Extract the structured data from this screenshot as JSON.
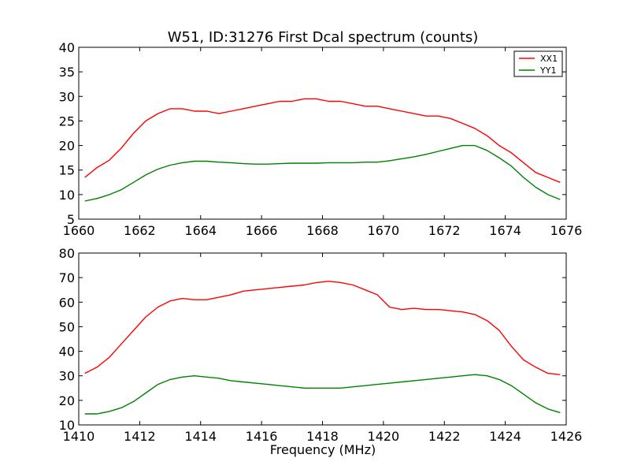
{
  "figure": {
    "title": "W51, ID:31276 First Dcal spectrum (counts)",
    "xlabel": "Frequency (MHz)"
  },
  "chart_data": [
    {
      "type": "line",
      "title": "W51, ID:31276 First Dcal spectrum (counts)",
      "xlabel": "",
      "ylabel": "",
      "xlim": [
        1660,
        1676
      ],
      "ylim": [
        5,
        40
      ],
      "xticks": [
        1660,
        1662,
        1664,
        1666,
        1668,
        1670,
        1672,
        1674,
        1676
      ],
      "yticks": [
        5,
        10,
        15,
        20,
        25,
        30,
        35,
        40
      ],
      "grid": false,
      "legend": {
        "placement": "top-right",
        "entries": [
          "XX1",
          "YY1"
        ]
      },
      "x": [
        1660.2,
        1660.6,
        1661.0,
        1661.4,
        1661.8,
        1662.2,
        1662.6,
        1663.0,
        1663.4,
        1663.8,
        1664.2,
        1664.6,
        1665.0,
        1665.4,
        1665.8,
        1666.2,
        1666.6,
        1667.0,
        1667.4,
        1667.8,
        1668.2,
        1668.6,
        1669.0,
        1669.4,
        1669.8,
        1670.2,
        1670.6,
        1671.0,
        1671.4,
        1671.8,
        1672.2,
        1672.6,
        1673.0,
        1673.4,
        1673.8,
        1674.2,
        1674.6,
        1675.0,
        1675.4,
        1675.8
      ],
      "series": [
        {
          "name": "XX1",
          "color": "#ff0000",
          "values": [
            13.5,
            15.5,
            17.0,
            19.5,
            22.5,
            25.0,
            26.5,
            27.5,
            27.5,
            27.0,
            27.0,
            26.5,
            27.0,
            27.5,
            28.0,
            28.5,
            29.0,
            29.0,
            29.5,
            29.5,
            29.0,
            29.0,
            28.5,
            28.0,
            28.0,
            27.5,
            27.0,
            26.5,
            26.0,
            26.0,
            25.5,
            24.5,
            23.5,
            22.0,
            20.0,
            18.5,
            16.5,
            14.5,
            13.5,
            12.5
          ]
        },
        {
          "name": "YY1",
          "color": "#008000",
          "values": [
            8.7,
            9.2,
            10.0,
            11.0,
            12.5,
            14.0,
            15.2,
            16.0,
            16.5,
            16.8,
            16.8,
            16.6,
            16.5,
            16.3,
            16.2,
            16.2,
            16.3,
            16.4,
            16.4,
            16.4,
            16.5,
            16.5,
            16.5,
            16.6,
            16.6,
            16.9,
            17.3,
            17.7,
            18.2,
            18.8,
            19.4,
            20.0,
            20.0,
            19.0,
            17.5,
            15.8,
            13.5,
            11.5,
            10.0,
            9.0
          ]
        }
      ]
    },
    {
      "type": "line",
      "title": "",
      "xlabel": "Frequency (MHz)",
      "ylabel": "",
      "xlim": [
        1410,
        1426
      ],
      "ylim": [
        10,
        80
      ],
      "xticks": [
        1410,
        1412,
        1414,
        1416,
        1418,
        1420,
        1422,
        1424,
        1426
      ],
      "yticks": [
        10,
        20,
        30,
        40,
        50,
        60,
        70,
        80
      ],
      "grid": false,
      "x": [
        1410.2,
        1410.6,
        1411.0,
        1411.4,
        1411.8,
        1412.2,
        1412.6,
        1413.0,
        1413.4,
        1413.8,
        1414.2,
        1414.6,
        1415.0,
        1415.4,
        1415.8,
        1416.2,
        1416.6,
        1417.0,
        1417.4,
        1417.8,
        1418.2,
        1418.6,
        1419.0,
        1419.4,
        1419.8,
        1420.2,
        1420.6,
        1421.0,
        1421.4,
        1421.8,
        1422.2,
        1422.6,
        1423.0,
        1423.4,
        1423.8,
        1424.2,
        1424.6,
        1425.0,
        1425.4,
        1425.8
      ],
      "series": [
        {
          "name": "XX1",
          "color": "#ff0000",
          "values": [
            31.0,
            33.5,
            37.5,
            43.0,
            48.5,
            54.0,
            58.0,
            60.5,
            61.5,
            61.0,
            61.0,
            62.0,
            63.0,
            64.5,
            65.0,
            65.5,
            66.0,
            66.5,
            67.0,
            68.0,
            68.5,
            68.0,
            67.0,
            65.0,
            63.0,
            58.0,
            57.0,
            57.5,
            57.0,
            57.0,
            56.5,
            56.0,
            55.0,
            52.5,
            48.5,
            42.0,
            36.5,
            33.5,
            31.0,
            30.5
          ]
        },
        {
          "name": "YY1",
          "color": "#008000",
          "values": [
            14.5,
            14.5,
            15.5,
            17.0,
            19.5,
            23.0,
            26.5,
            28.5,
            29.5,
            30.0,
            29.5,
            29.0,
            28.0,
            27.5,
            27.0,
            26.5,
            26.0,
            25.5,
            25.0,
            25.0,
            25.0,
            25.0,
            25.5,
            26.0,
            26.5,
            27.0,
            27.5,
            28.0,
            28.5,
            29.0,
            29.5,
            30.0,
            30.5,
            30.0,
            28.5,
            26.0,
            22.5,
            19.0,
            16.5,
            15.0
          ]
        }
      ]
    }
  ]
}
